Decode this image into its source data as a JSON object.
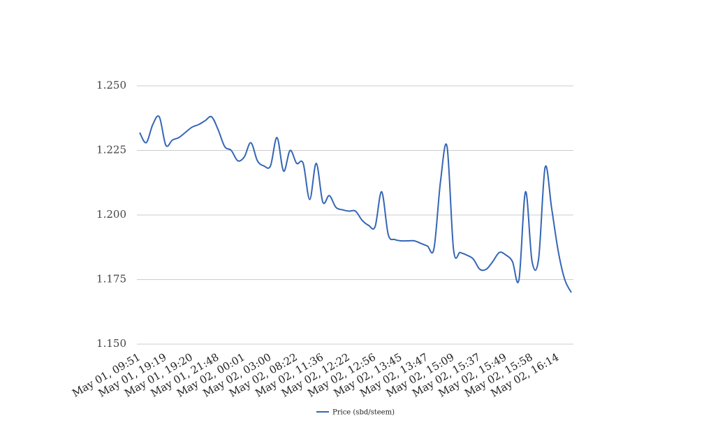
{
  "chart_data": {
    "type": "line",
    "categories": [
      "May 01, 09:51",
      null,
      null,
      null,
      "May 01, 19:19",
      null,
      null,
      null,
      "May 01, 19:20",
      null,
      null,
      null,
      "May 01, 21:48",
      null,
      null,
      null,
      "May 02, 00:01",
      null,
      null,
      null,
      "May 02, 03:00",
      null,
      null,
      null,
      "May 02, 08:22",
      null,
      null,
      null,
      "May 02, 11:36",
      null,
      null,
      null,
      "May 02, 12:22",
      null,
      null,
      null,
      "May 02, 12:56",
      null,
      null,
      null,
      "May 02, 13:45",
      null,
      null,
      null,
      "May 02, 13:47",
      null,
      null,
      null,
      "May 02, 15:09",
      null,
      null,
      null,
      "May 02, 15:37",
      null,
      null,
      null,
      "May 02, 15:49",
      null,
      null,
      null,
      "May 02, 15:58",
      null,
      null,
      null,
      "May 02, 16:14",
      null,
      null
    ],
    "series": [
      {
        "name": "Price (sbd/steem)",
        "color": "#3566b5",
        "values": [
          1.2319,
          1.228,
          1.235,
          1.238,
          1.227,
          1.229,
          1.23,
          1.232,
          1.234,
          1.235,
          1.2365,
          1.238,
          1.233,
          1.2265,
          1.225,
          1.221,
          1.2225,
          1.228,
          1.221,
          1.219,
          1.219,
          1.23,
          1.217,
          1.225,
          1.22,
          1.22,
          1.206,
          1.22,
          1.205,
          1.2075,
          1.203,
          1.202,
          1.2015,
          1.2015,
          1.198,
          1.196,
          1.1955,
          1.209,
          1.1925,
          1.1905,
          1.19,
          1.19,
          1.19,
          1.189,
          1.188,
          1.187,
          1.213,
          1.2265,
          1.1865,
          1.1855,
          1.1845,
          1.183,
          1.179,
          1.179,
          1.182,
          1.1855,
          1.1845,
          1.182,
          1.175,
          1.209,
          1.182,
          1.183,
          1.2185,
          1.2025,
          1.186,
          1.175,
          1.17
        ]
      }
    ],
    "ylim": [
      1.15,
      1.25
    ],
    "yticks": [
      {
        "value": 1.15,
        "label": "1.150"
      },
      {
        "value": 1.175,
        "label": "1.175"
      },
      {
        "value": 1.2,
        "label": "1.200"
      },
      {
        "value": 1.225,
        "label": "1.225"
      },
      {
        "value": 1.25,
        "label": "1.250"
      }
    ],
    "grid": true,
    "legend": "bottom"
  }
}
